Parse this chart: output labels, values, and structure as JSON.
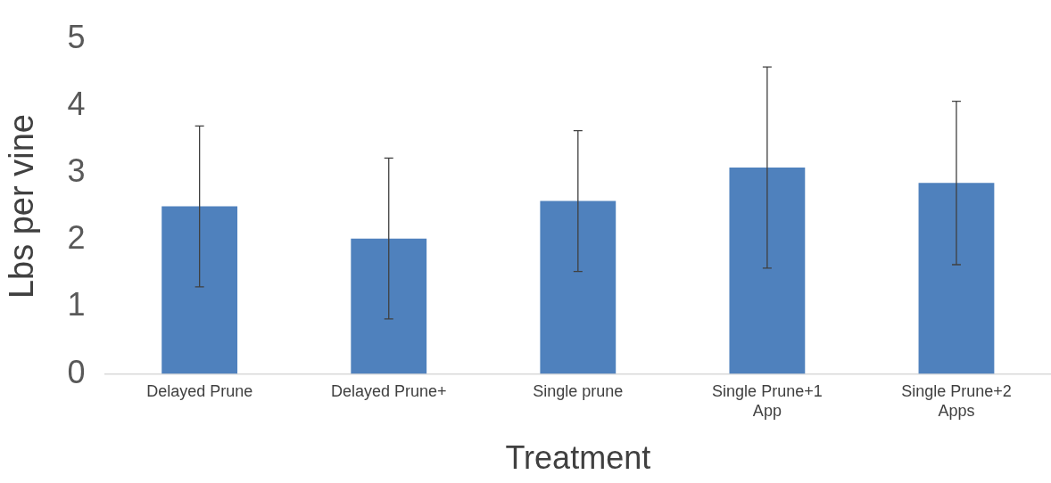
{
  "chart_data": {
    "type": "bar",
    "xlabel": "Treatment",
    "ylabel": "Lbs per vine",
    "categories": [
      "Delayed Prune",
      "Delayed Prune+",
      "Single prune",
      "Single Prune+1 App",
      "Single Prune+2 Apps"
    ],
    "values": [
      2.5,
      2.02,
      2.58,
      3.08,
      2.85
    ],
    "errors": [
      1.2,
      1.2,
      1.05,
      1.5,
      1.22
    ],
    "color": "#4f81bd",
    "ylim": [
      0,
      5
    ],
    "yticks": [
      0,
      1,
      2,
      3,
      4,
      5
    ],
    "grid": false,
    "legend": false
  }
}
